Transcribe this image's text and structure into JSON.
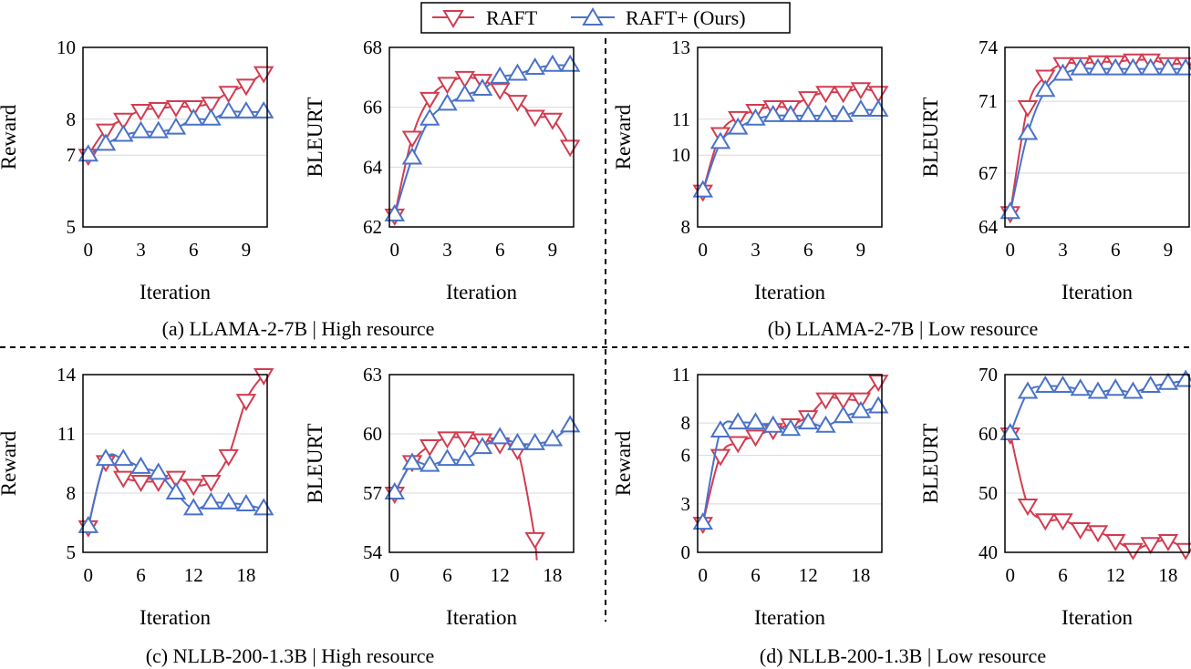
{
  "legend": {
    "raft_label": "RAFT",
    "raftplus_label": "RAFT+ (Ours)"
  },
  "colors": {
    "raft": "#d23c50",
    "raftplus": "#4a72c8"
  },
  "captions": [
    "(a)  LLAMA-2-7B | High resource",
    "(b)  LLAMA-2-7B | Low resource",
    "(c)  NLLB-200-1.3B | High resource",
    "(d)  NLLB-200-1.3B | Low resource"
  ],
  "chart_data": [
    {
      "type": "line",
      "panel": "a",
      "xlabel": "Iteration",
      "ylabel": "Reward",
      "x": [
        0,
        1,
        2,
        3,
        4,
        5,
        6,
        7,
        8,
        9,
        10
      ],
      "xticks": [
        0,
        3,
        6,
        9
      ],
      "xlim": [
        -0.3,
        10.2
      ],
      "ylim": [
        5,
        10
      ],
      "yticks": [
        {
          "v": 5,
          "label": "5"
        },
        {
          "v": 7,
          "label": "7"
        },
        {
          "v": 8,
          "label": "8"
        },
        {
          "v": 10,
          "label": "10"
        }
      ],
      "grid": true,
      "series": [
        {
          "name": "RAFT",
          "values": [
            7.0,
            7.7,
            8.0,
            8.25,
            8.3,
            8.35,
            8.35,
            8.45,
            8.75,
            8.95,
            9.3
          ]
        },
        {
          "name": "RAFT+ (Ours)",
          "values": [
            7.0,
            7.3,
            7.55,
            7.65,
            7.65,
            7.75,
            8.0,
            8.0,
            8.2,
            8.2,
            8.2
          ]
        }
      ]
    },
    {
      "type": "line",
      "panel": "a",
      "xlabel": "Iteration",
      "ylabel": "BLEURT",
      "x": [
        0,
        1,
        2,
        3,
        4,
        5,
        6,
        7,
        8,
        9,
        10
      ],
      "xticks": [
        0,
        3,
        6,
        9
      ],
      "xlim": [
        -0.3,
        10.2
      ],
      "ylim": [
        62,
        68
      ],
      "yticks": [
        {
          "v": 62,
          "label": "62"
        },
        {
          "v": 64,
          "label": "64"
        },
        {
          "v": 66,
          "label": "66"
        },
        {
          "v": 68,
          "label": "68"
        }
      ],
      "grid": true,
      "series": [
        {
          "name": "RAFT",
          "values": [
            62.4,
            65.0,
            66.3,
            66.8,
            67.0,
            66.9,
            66.6,
            66.2,
            65.7,
            65.6,
            64.7
          ]
        },
        {
          "name": "RAFT+ (Ours)",
          "values": [
            62.4,
            64.3,
            65.6,
            66.1,
            66.4,
            66.6,
            67.0,
            67.1,
            67.3,
            67.4,
            67.4
          ]
        }
      ]
    },
    {
      "type": "line",
      "panel": "b",
      "xlabel": "Iteration",
      "ylabel": "Reward",
      "x": [
        0,
        1,
        2,
        3,
        4,
        5,
        6,
        7,
        8,
        9,
        10
      ],
      "xticks": [
        0,
        3,
        6,
        9
      ],
      "xlim": [
        -0.3,
        10.2
      ],
      "ylim": [
        8,
        13
      ],
      "yticks": [
        {
          "v": 8,
          "label": "8"
        },
        {
          "v": 10,
          "label": "10"
        },
        {
          "v": 11,
          "label": "11"
        },
        {
          "v": 13,
          "label": "13"
        }
      ],
      "grid": true,
      "series": [
        {
          "name": "RAFT",
          "values": [
            9.0,
            10.6,
            11.05,
            11.25,
            11.35,
            11.35,
            11.6,
            11.75,
            11.75,
            11.85,
            11.75
          ]
        },
        {
          "name": "RAFT+ (Ours)",
          "values": [
            9.0,
            10.35,
            10.75,
            11.0,
            11.1,
            11.1,
            11.1,
            11.1,
            11.1,
            11.25,
            11.25
          ]
        }
      ]
    },
    {
      "type": "line",
      "panel": "b",
      "xlabel": "Iteration",
      "ylabel": "BLEURT",
      "x": [
        0,
        1,
        2,
        3,
        4,
        5,
        6,
        7,
        8,
        9,
        10
      ],
      "xticks": [
        0,
        3,
        6,
        9
      ],
      "xlim": [
        -0.3,
        10.2
      ],
      "ylim": [
        64,
        74
      ],
      "yticks": [
        {
          "v": 64,
          "label": "64"
        },
        {
          "v": 67,
          "label": "67"
        },
        {
          "v": 71,
          "label": "71"
        },
        {
          "v": 74,
          "label": "74"
        }
      ],
      "grid": true,
      "series": [
        {
          "name": "RAFT",
          "values": [
            64.8,
            70.7,
            72.4,
            73.1,
            73.1,
            73.2,
            73.2,
            73.3,
            73.3,
            73.1,
            73.1
          ]
        },
        {
          "name": "RAFT+ (Ours)",
          "values": [
            64.8,
            69.2,
            71.6,
            72.5,
            72.8,
            72.8,
            72.8,
            72.8,
            72.8,
            72.8,
            72.8
          ]
        }
      ]
    },
    {
      "type": "line",
      "panel": "c",
      "xlabel": "Iteration",
      "ylabel": "Reward",
      "x": [
        0,
        2,
        4,
        6,
        8,
        10,
        12,
        14,
        16,
        18,
        20
      ],
      "xticks": [
        0,
        6,
        12,
        18
      ],
      "xlim": [
        -0.6,
        20.4
      ],
      "ylim": [
        5,
        14
      ],
      "yticks": [
        {
          "v": 5,
          "label": "5"
        },
        {
          "v": 8,
          "label": "8"
        },
        {
          "v": 11,
          "label": "11"
        },
        {
          "v": 14,
          "label": "14"
        }
      ],
      "grid": true,
      "series": [
        {
          "name": "RAFT",
          "values": [
            6.3,
            9.6,
            8.8,
            8.6,
            8.6,
            8.8,
            8.4,
            8.6,
            9.9,
            12.7,
            14.0
          ]
        },
        {
          "name": "RAFT+ (Ours)",
          "values": [
            6.3,
            9.7,
            9.7,
            9.3,
            9.0,
            8.0,
            7.2,
            7.5,
            7.5,
            7.4,
            7.2
          ]
        }
      ]
    },
    {
      "type": "line",
      "panel": "c",
      "xlabel": "Iteration",
      "ylabel": "BLEURT",
      "x": [
        0,
        2,
        4,
        6,
        8,
        10,
        12,
        14,
        16,
        18,
        20
      ],
      "xticks": [
        0,
        6,
        12,
        18
      ],
      "xlim": [
        -0.6,
        20.4
      ],
      "ylim": [
        54,
        63
      ],
      "yticks": [
        {
          "v": 54,
          "label": "54"
        },
        {
          "v": 57,
          "label": "57"
        },
        {
          "v": 60,
          "label": "60"
        },
        {
          "v": 63,
          "label": "63"
        }
      ],
      "grid": true,
      "series": [
        {
          "name": "RAFT",
          "values": [
            57.0,
            58.6,
            59.4,
            59.8,
            59.8,
            59.7,
            59.5,
            59.2,
            54.7,
            null,
            null
          ],
          "tail_to_y": 53.6
        },
        {
          "name": "RAFT+ (Ours)",
          "values": [
            57.0,
            58.5,
            58.4,
            58.7,
            58.7,
            59.3,
            59.8,
            59.5,
            59.5,
            59.7,
            60.4
          ]
        }
      ]
    },
    {
      "type": "line",
      "panel": "d",
      "xlabel": "Iteration",
      "ylabel": "Reward",
      "x": [
        0,
        2,
        4,
        6,
        8,
        10,
        12,
        14,
        16,
        18,
        20
      ],
      "xticks": [
        0,
        6,
        12,
        18
      ],
      "xlim": [
        -0.6,
        20.4
      ],
      "ylim": [
        0,
        11
      ],
      "yticks": [
        {
          "v": 0,
          "label": "0"
        },
        {
          "v": 3,
          "label": "3"
        },
        {
          "v": 6,
          "label": "6"
        },
        {
          "v": 8,
          "label": "8"
        },
        {
          "v": 11,
          "label": "11"
        }
      ],
      "grid": true,
      "series": [
        {
          "name": "RAFT",
          "values": [
            1.8,
            6.0,
            6.8,
            7.2,
            7.6,
            7.9,
            8.4,
            9.5,
            9.5,
            9.5,
            10.6
          ]
        },
        {
          "name": "RAFT+ (Ours)",
          "values": [
            1.8,
            7.5,
            8.0,
            8.0,
            7.8,
            7.6,
            8.0,
            7.8,
            8.4,
            8.7,
            9.0
          ]
        }
      ]
    },
    {
      "type": "line",
      "panel": "d",
      "xlabel": "Iteration",
      "ylabel": "BLEURT",
      "x": [
        0,
        2,
        4,
        6,
        8,
        10,
        12,
        14,
        16,
        18,
        20
      ],
      "xticks": [
        0,
        6,
        12,
        18
      ],
      "xlim": [
        -0.6,
        20.4
      ],
      "ylim": [
        40,
        70
      ],
      "yticks": [
        {
          "v": 40,
          "label": "40"
        },
        {
          "v": 50,
          "label": "50"
        },
        {
          "v": 60,
          "label": "60"
        },
        {
          "v": 70,
          "label": "70"
        }
      ],
      "grid": true,
      "series": [
        {
          "name": "RAFT",
          "values": [
            60.0,
            48.0,
            45.5,
            45.5,
            44.0,
            43.5,
            42.0,
            40.5,
            41.5,
            42.0,
            40.5
          ]
        },
        {
          "name": "RAFT+ (Ours)",
          "values": [
            60.0,
            67.0,
            68.0,
            68.0,
            67.5,
            67.0,
            67.5,
            67.0,
            68.0,
            68.5,
            69.0
          ]
        }
      ]
    }
  ]
}
